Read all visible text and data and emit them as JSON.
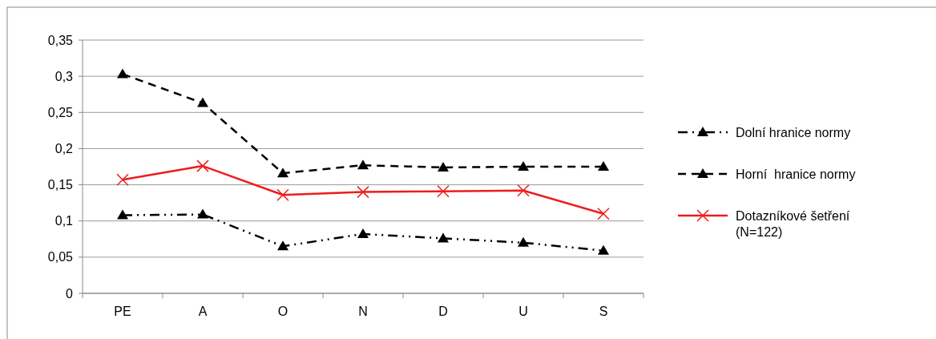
{
  "chart_data": {
    "type": "line",
    "categories": [
      "PE",
      "A",
      "O",
      "N",
      "D",
      "U",
      "S"
    ],
    "series": [
      {
        "name": "Dolní hranice normy",
        "color": "#000000",
        "marker": "triangle",
        "line_style": "dotted",
        "values": [
          0.108,
          0.109,
          0.065,
          0.082,
          0.076,
          0.07,
          0.059
        ]
      },
      {
        "name": "Horní  hranice normy",
        "color": "#000000",
        "marker": "triangle",
        "line_style": "dashed",
        "values": [
          0.303,
          0.263,
          0.166,
          0.177,
          0.174,
          0.175,
          0.175
        ]
      },
      {
        "name": "Dotazníkové šetření (N=122)",
        "color": "#ee1c1c",
        "marker": "cross",
        "line_style": "solid",
        "values": [
          0.157,
          0.176,
          0.136,
          0.14,
          0.141,
          0.142,
          0.11
        ]
      }
    ],
    "ylim": [
      0,
      0.35
    ],
    "yticks": [
      {
        "value": 0,
        "label": "0"
      },
      {
        "value": 0.05,
        "label": "0,05"
      },
      {
        "value": 0.1,
        "label": "0,1"
      },
      {
        "value": 0.15,
        "label": "0,15"
      },
      {
        "value": 0.2,
        "label": "0,2"
      },
      {
        "value": 0.25,
        "label": "0,25"
      },
      {
        "value": 0.3,
        "label": "0,3"
      },
      {
        "value": 0.35,
        "label": "0,35"
      }
    ],
    "grid": "y",
    "legend": "right"
  }
}
